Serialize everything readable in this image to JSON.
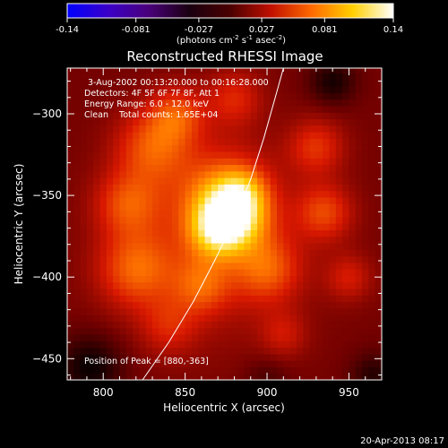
{
  "colorbar": {
    "ticks": [
      "-0.14",
      "-0.081",
      "-0.027",
      "0.027",
      "0.081",
      "0.14"
    ],
    "range": [
      -0.14,
      0.14
    ],
    "unit_main": "(photons cm",
    "unit_exp1": "-2",
    "unit_mid": " s",
    "unit_exp2": "-1",
    "unit_tail": " asec",
    "unit_exp3": "-2",
    "unit_close": ")"
  },
  "annotations": {
    "time_range": "3-Aug-2002 00:13:20.000 to 00:16:28.000",
    "detectors": "Detectors: 4F 5F 6F 7F 8F, Att 1",
    "energy": "Energy Range: 6.0 - 12.0 keV",
    "clean": "Clean    Total counts: 1.65E+04",
    "peak": "Position of Peak = [880,-363]",
    "footer_time": "20-Apr-2013 08:17"
  },
  "chart_data": {
    "type": "heatmap",
    "title": "Reconstructed RHESSI Image",
    "xlabel": "Heliocentric X (arcsec)",
    "ylabel": "Heliocentric Y (arcsec)",
    "xlim": [
      778,
      970
    ],
    "ylim": [
      -463,
      -272
    ],
    "x_ticks": [
      800,
      850,
      900,
      950
    ],
    "x_tick_labels": [
      "800",
      "850",
      "900",
      "950"
    ],
    "y_ticks": [
      -300,
      -350,
      -400,
      -450
    ],
    "y_tick_labels": [
      "−300",
      "−350",
      "−400",
      "−450"
    ],
    "peak": {
      "x": 880,
      "y": -363,
      "value": 0.14
    },
    "limb_curve": [
      [
        824,
        -463
      ],
      [
        840,
        -440
      ],
      [
        855,
        -415
      ],
      [
        868,
        -390
      ],
      [
        880,
        -365
      ],
      [
        890,
        -340
      ],
      [
        898,
        -315
      ],
      [
        905,
        -290
      ],
      [
        910,
        -272
      ]
    ],
    "colormap": [
      "#0000ff",
      "#3a00c8",
      "#4a007a",
      "#000000",
      "#6e0000",
      "#d81800",
      "#ff7800",
      "#ffd000",
      "#ffffff"
    ],
    "blobs": [
      {
        "x": 878,
        "y": -362,
        "s": 14,
        "a": 0.115
      },
      {
        "x": 868,
        "y": -373,
        "s": 11,
        "a": 0.045
      },
      {
        "x": 885,
        "y": -347,
        "s": 10,
        "a": 0.035
      },
      {
        "x": 872,
        "y": -348,
        "s": 20,
        "a": 0.04
      },
      {
        "x": 830,
        "y": -320,
        "s": 16,
        "a": 0.05
      },
      {
        "x": 845,
        "y": -300,
        "s": 12,
        "a": 0.045
      },
      {
        "x": 815,
        "y": -355,
        "s": 14,
        "a": 0.045
      },
      {
        "x": 820,
        "y": -395,
        "s": 16,
        "a": 0.05
      },
      {
        "x": 860,
        "y": -405,
        "s": 12,
        "a": 0.04
      },
      {
        "x": 900,
        "y": -395,
        "s": 14,
        "a": 0.045
      },
      {
        "x": 935,
        "y": -360,
        "s": 12,
        "a": 0.045
      },
      {
        "x": 930,
        "y": -320,
        "s": 12,
        "a": 0.04
      },
      {
        "x": 880,
        "y": -290,
        "s": 12,
        "a": 0.035
      },
      {
        "x": 950,
        "y": -400,
        "s": 10,
        "a": 0.03
      },
      {
        "x": 840,
        "y": -430,
        "s": 12,
        "a": 0.028
      },
      {
        "x": 910,
        "y": -435,
        "s": 10,
        "a": 0.025
      },
      {
        "x": 865,
        "y": -380,
        "s": 40,
        "a": 0.028
      },
      {
        "x": 940,
        "y": -280,
        "s": 10,
        "a": -0.03
      },
      {
        "x": 792,
        "y": -455,
        "s": 14,
        "a": -0.035
      },
      {
        "x": 965,
        "y": -460,
        "s": 10,
        "a": -0.025
      },
      {
        "x": 900,
        "y": -462,
        "s": 10,
        "a": -0.015
      }
    ]
  }
}
